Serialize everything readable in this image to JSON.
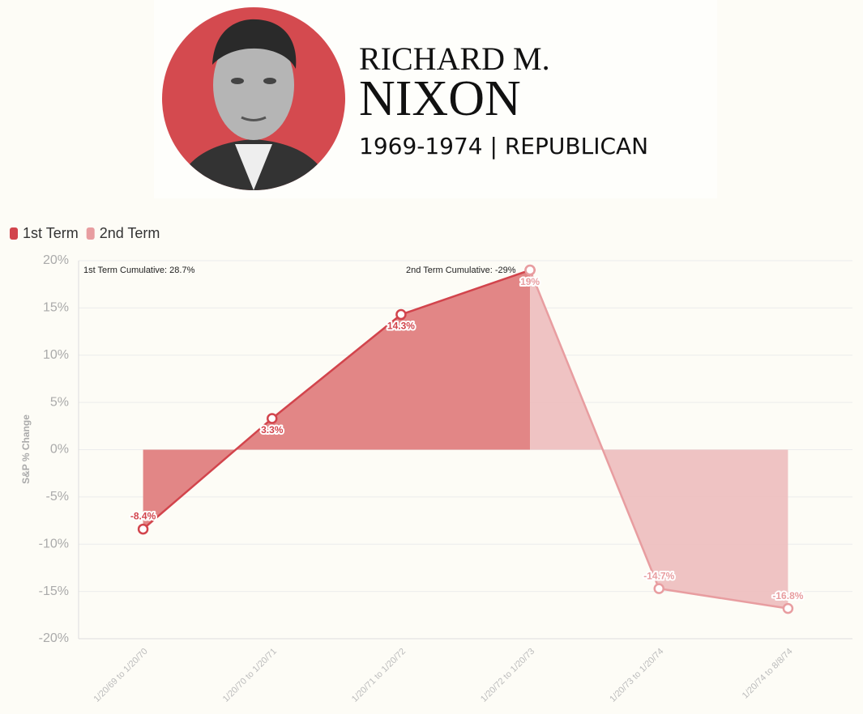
{
  "header": {
    "name_first": "RICHARD M.",
    "name_last": "NIXON",
    "subtitle": "1969-1974  |  REPUBLICAN"
  },
  "chart_data": {
    "type": "area-line",
    "y_label": "S&P % Change",
    "categories": [
      "1/20/69 to 1/20/70",
      "1/20/70 to 1/20/71",
      "1/20/71 to 1/20/72",
      "1/20/72 to 1/20/73",
      "1/20/73 to 1/20/74",
      "1/20/74 to 8/8/74"
    ],
    "series": [
      {
        "name": "1st Term",
        "color": "#d2444c",
        "fill": "#e07f80",
        "values": [
          -8.4,
          3.3,
          14.3,
          19,
          null,
          null
        ],
        "value_labels": [
          "-8.4%",
          "3.3%",
          "14.3%",
          null,
          null,
          null
        ]
      },
      {
        "name": "2nd Term",
        "color": "#e89da0",
        "fill": "#eec0c0",
        "values": [
          null,
          null,
          null,
          19,
          -14.7,
          -16.8
        ],
        "value_labels": [
          null,
          null,
          null,
          "19%",
          "-14.7%",
          "-16.8%"
        ]
      }
    ],
    "annotations": [
      "1st Term Cumulative: 28.7%",
      "2nd Term Cumulative: -29%"
    ],
    "ylim": [
      -20,
      20
    ],
    "yticks": [
      {
        "value": -20,
        "label": "-20%"
      },
      {
        "value": -15,
        "label": "-15%"
      },
      {
        "value": -10,
        "label": "-10%"
      },
      {
        "value": -5,
        "label": "-5%"
      },
      {
        "value": 0,
        "label": "0%"
      },
      {
        "value": 5,
        "label": "5%"
      },
      {
        "value": 10,
        "label": "10%"
      },
      {
        "value": 15,
        "label": "15%"
      },
      {
        "value": 20,
        "label": "20%"
      }
    ],
    "grid": true,
    "legend": "top-left"
  }
}
